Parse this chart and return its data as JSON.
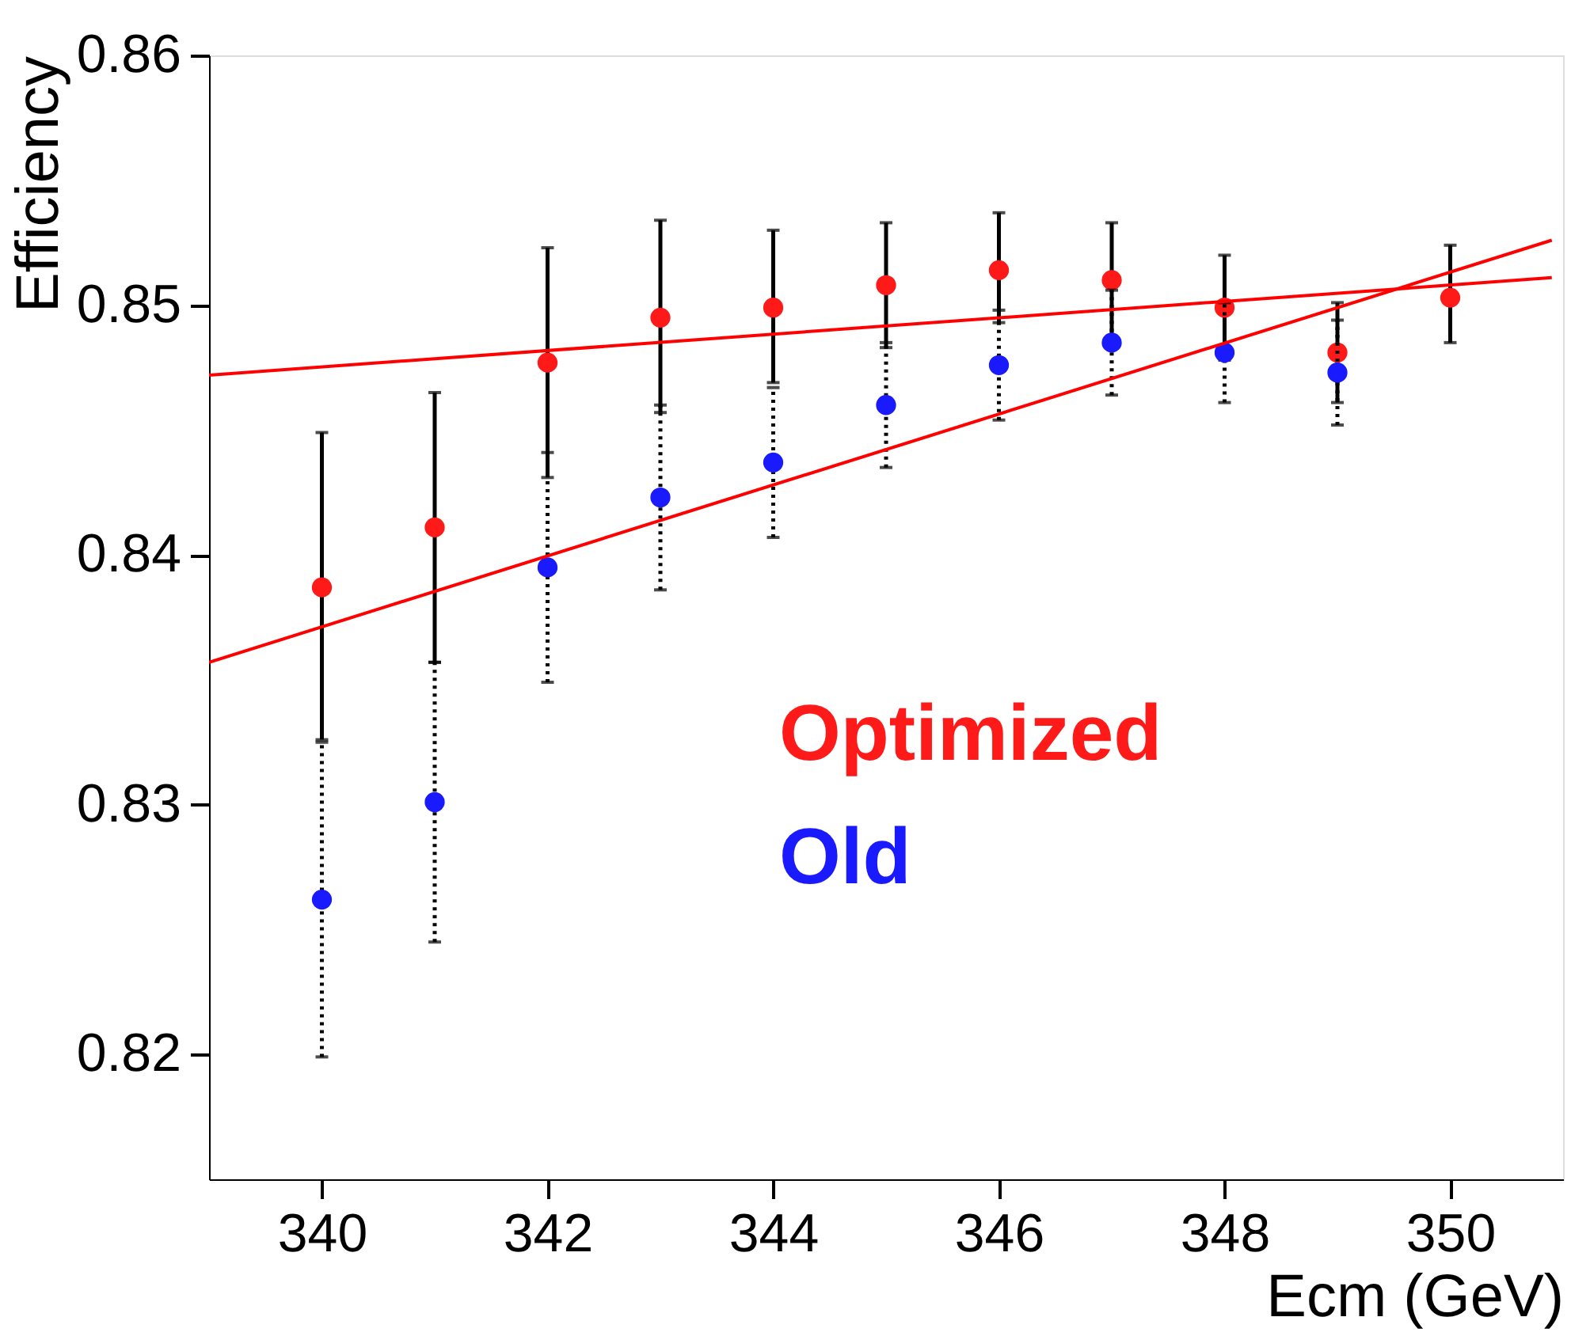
{
  "chart_data": {
    "type": "scatter",
    "xlabel": "Ecm (GeV)",
    "ylabel": "Efficiency",
    "x": [
      340,
      341,
      342,
      343,
      344,
      345,
      346,
      347,
      348,
      349,
      350
    ],
    "xlim": [
      339,
      351
    ],
    "ylim": [
      0.815,
      0.86
    ],
    "xticks": [
      340,
      342,
      344,
      346,
      348,
      350
    ],
    "yticks": [
      0.82,
      0.83,
      0.84,
      0.85,
      0.86
    ],
    "grid": false,
    "legend": "bottom right",
    "series": [
      {
        "name": "Optimized",
        "color": "#ff1a1a",
        "marker": "circle",
        "line_style": "solid",
        "values": [
          0.8387,
          0.8411,
          0.8477,
          0.8495,
          0.8499,
          0.8508,
          0.8514,
          0.851,
          0.8499,
          0.8481,
          0.8503
        ],
        "errors": [
          [
            0.8326,
            0.8449
          ],
          [
            0.8357,
            0.8465
          ],
          [
            0.8431,
            0.8523
          ],
          [
            0.8457,
            0.8534
          ],
          [
            0.8469,
            0.853
          ],
          [
            0.8483,
            0.8533
          ],
          [
            0.8493,
            0.8537
          ],
          [
            0.8487,
            0.8533
          ],
          [
            0.8478,
            0.852
          ],
          [
            0.8461,
            0.8501
          ],
          [
            0.8485,
            0.8524
          ]
        ]
      },
      {
        "name": "Old",
        "color": "#1a1aff",
        "marker": "circle",
        "line_style": "dotted",
        "x": [
          340,
          341,
          342,
          343,
          344,
          345,
          346,
          347,
          348,
          349
        ],
        "values": [
          0.8262,
          0.8301,
          0.8395,
          0.8423,
          0.8437,
          0.846,
          0.8476,
          0.8485,
          0.8481,
          0.8473
        ],
        "errors": [
          0.0063,
          0.0056,
          0.0046,
          0.0037,
          0.003,
          0.0025,
          0.0022,
          0.0021,
          0.002,
          0.0021
        ]
      },
      {
        "type": "line",
        "color": "#ff0000",
        "x": [
          339,
          350.9
        ],
        "values": [
          0.8472,
          0.8511
        ]
      },
      {
        "type": "line",
        "color": "#ff0000",
        "x": [
          339,
          350.9
        ],
        "values": [
          0.8357,
          0.8526
        ]
      }
    ]
  }
}
